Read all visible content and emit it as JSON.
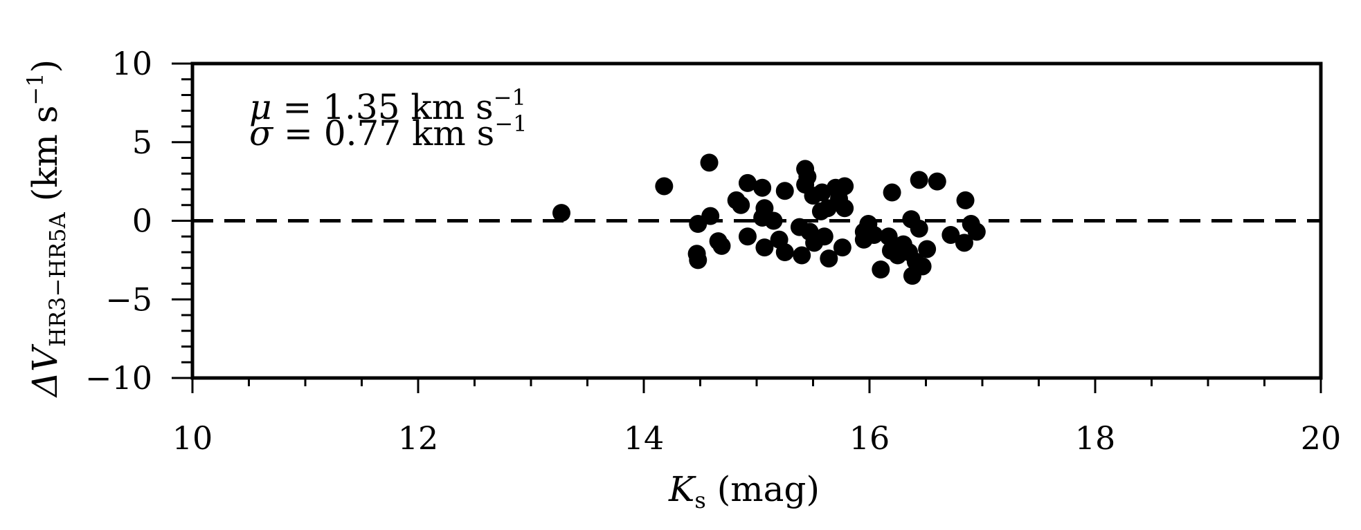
{
  "chart_data": {
    "type": "scatter",
    "xlabel": "K",
    "xlabel_sub": "s",
    "xlabel_unit": " (mag)",
    "ylabel": "ΔV",
    "ylabel_sub": "HR3−HR5A",
    "ylabel_unit": " (km s",
    "ylabel_unit_sup": "−1",
    "ylabel_unit_close": ")",
    "xlim": [
      10,
      20
    ],
    "ylim": [
      -10,
      10
    ],
    "x_ticks": [
      10,
      12,
      14,
      16,
      18,
      20
    ],
    "x_tick_labels": [
      "10",
      "12",
      "14",
      "16",
      "18",
      "20"
    ],
    "y_ticks": [
      10,
      5,
      0,
      -5,
      -10
    ],
    "y_tick_labels": [
      "10",
      "5",
      "0",
      "−5",
      "−10"
    ],
    "reference_line": {
      "y": 0,
      "style": "dashed"
    },
    "annotations": [
      {
        "symbol": "μ",
        "text": " = 1.35 km s",
        "sup": "−1"
      },
      {
        "symbol": "σ",
        "text": " = 0.77 km s",
        "sup": "−1"
      }
    ],
    "grid": false,
    "marker_color": "#000000",
    "points": [
      [
        13.27,
        0.5
      ],
      [
        14.18,
        2.2
      ],
      [
        14.58,
        3.7
      ],
      [
        14.48,
        -0.2
      ],
      [
        14.59,
        0.3
      ],
      [
        14.47,
        -2.1
      ],
      [
        14.48,
        -2.5
      ],
      [
        14.66,
        -1.3
      ],
      [
        14.69,
        -1.6
      ],
      [
        14.82,
        1.3
      ],
      [
        14.86,
        1.0
      ],
      [
        14.92,
        2.4
      ],
      [
        14.92,
        -1.0
      ],
      [
        15.05,
        2.1
      ],
      [
        15.07,
        0.8
      ],
      [
        15.05,
        0.2
      ],
      [
        15.15,
        0.0
      ],
      [
        15.07,
        -1.7
      ],
      [
        15.2,
        -1.2
      ],
      [
        15.25,
        1.9
      ],
      [
        15.25,
        -2.0
      ],
      [
        15.38,
        -0.4
      ],
      [
        15.4,
        -2.2
      ],
      [
        15.43,
        3.3
      ],
      [
        15.45,
        2.8
      ],
      [
        15.43,
        2.3
      ],
      [
        15.5,
        1.6
      ],
      [
        15.47,
        -0.7
      ],
      [
        15.51,
        -1.4
      ],
      [
        15.6,
        -1.0
      ],
      [
        15.58,
        1.8
      ],
      [
        15.57,
        0.6
      ],
      [
        15.63,
        0.8
      ],
      [
        15.64,
        -2.4
      ],
      [
        15.7,
        2.1
      ],
      [
        15.73,
        1.4
      ],
      [
        15.76,
        -1.7
      ],
      [
        15.78,
        2.2
      ],
      [
        15.78,
        0.8
      ],
      [
        15.95,
        -0.7
      ],
      [
        15.95,
        -1.2
      ],
      [
        15.99,
        -0.2
      ],
      [
        16.04,
        -0.9
      ],
      [
        16.1,
        -3.1
      ],
      [
        16.17,
        -1.0
      ],
      [
        16.19,
        -1.9
      ],
      [
        16.2,
        1.8
      ],
      [
        16.25,
        -2.2
      ],
      [
        16.3,
        -1.5
      ],
      [
        16.35,
        -2.0
      ],
      [
        16.37,
        0.1
      ],
      [
        16.38,
        -3.5
      ],
      [
        16.41,
        -2.6
      ],
      [
        16.44,
        -0.5
      ],
      [
        16.44,
        2.6
      ],
      [
        16.47,
        -2.9
      ],
      [
        16.51,
        -1.8
      ],
      [
        16.6,
        2.5
      ],
      [
        16.72,
        -0.9
      ],
      [
        16.84,
        -1.4
      ],
      [
        16.85,
        1.3
      ],
      [
        16.9,
        -0.2
      ],
      [
        16.95,
        -0.7
      ]
    ]
  }
}
